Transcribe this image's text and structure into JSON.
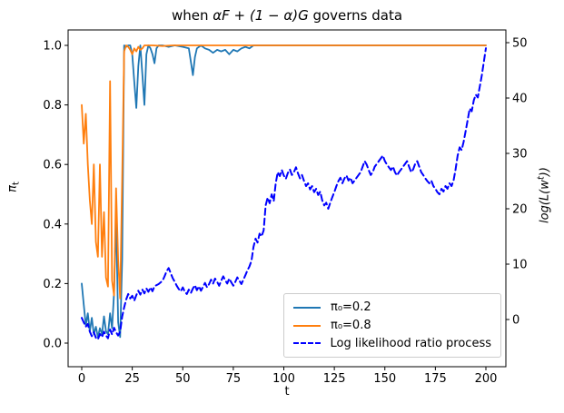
{
  "title": {
    "prefix": "when ",
    "math": "αF + (1 − α)G",
    "suffix": " governs data"
  },
  "axes": {
    "xlabel": "t",
    "ylabel_left": {
      "main": "π",
      "sub": "t"
    },
    "ylabel_right": {
      "pre": "log(L(w",
      "sup": "t",
      "post": "))"
    }
  },
  "legend": {
    "items": [
      {
        "label": "π₀=0.2",
        "color": "#1f77b4",
        "dash": false
      },
      {
        "label": "π₀=0.8",
        "color": "#ff7f0e",
        "dash": false
      },
      {
        "label": "Log likelihood ratio process",
        "color": "#0000ff",
        "dash": true
      }
    ]
  },
  "chart_data": {
    "type": "line",
    "title": "when αF + (1 − α)G governs data",
    "xlabel": "t",
    "ylabel_left": "π_t",
    "ylabel_right": "log(L(w^t))",
    "xlim": [
      -7,
      210
    ],
    "ylim_left": [
      -0.07,
      1.05
    ],
    "ylim_right": [
      -8.4,
      52.3
    ],
    "xticks": [
      0,
      25,
      50,
      75,
      100,
      125,
      150,
      175,
      200
    ],
    "yticks_left": [
      0.0,
      0.2,
      0.4,
      0.6,
      0.8,
      1.0
    ],
    "yticks_right": [
      0,
      10,
      20,
      30,
      40,
      50
    ],
    "grid": false,
    "legend_position": "lower right",
    "series": [
      {
        "name": "π₀=0.2",
        "axis": "left",
        "color": "#1f77b4",
        "style": "solid",
        "points": [
          [
            0,
            0.2
          ],
          [
            1,
            0.13
          ],
          [
            2,
            0.06
          ],
          [
            3,
            0.1
          ],
          [
            4,
            0.04
          ],
          [
            5,
            0.085
          ],
          [
            6,
            0.03
          ],
          [
            7,
            0.055
          ],
          [
            8,
            0.02
          ],
          [
            9,
            0.05
          ],
          [
            10,
            0.03
          ],
          [
            11,
            0.09
          ],
          [
            12,
            0.04
          ],
          [
            13,
            0.03
          ],
          [
            14,
            0.1
          ],
          [
            15,
            0.05
          ],
          [
            16,
            0.17
          ],
          [
            17,
            0.43
          ],
          [
            18,
            0.07
          ],
          [
            19,
            0.02
          ],
          [
            20,
            0.28
          ],
          [
            21,
            1.0
          ],
          [
            22,
            0.995
          ],
          [
            23,
            1.0
          ],
          [
            24,
            1.0
          ],
          [
            25,
            0.97
          ],
          [
            26,
            0.88
          ],
          [
            27,
            0.79
          ],
          [
            28,
            0.93
          ],
          [
            29,
            1.0
          ],
          [
            30,
            0.9
          ],
          [
            31,
            0.8
          ],
          [
            32,
            0.97
          ],
          [
            33,
            1.0
          ],
          [
            34,
            0.99
          ],
          [
            35,
            0.97
          ],
          [
            36,
            0.94
          ],
          [
            37,
            0.99
          ],
          [
            38,
            1.0
          ],
          [
            40,
            1.0
          ],
          [
            43,
            0.995
          ],
          [
            46,
            1.0
          ],
          [
            50,
            0.995
          ],
          [
            53,
            0.99
          ],
          [
            55,
            0.9
          ],
          [
            56,
            0.96
          ],
          [
            57,
            0.99
          ],
          [
            59,
            1.0
          ],
          [
            61,
            0.99
          ],
          [
            63,
            0.985
          ],
          [
            65,
            0.975
          ],
          [
            67,
            0.985
          ],
          [
            69,
            0.98
          ],
          [
            71,
            0.985
          ],
          [
            73,
            0.97
          ],
          [
            75,
            0.985
          ],
          [
            77,
            0.98
          ],
          [
            79,
            0.99
          ],
          [
            81,
            0.995
          ],
          [
            83,
            0.99
          ],
          [
            85,
            1.0
          ],
          [
            100,
            1.0
          ],
          [
            150,
            1.0
          ],
          [
            200,
            1.0
          ]
        ]
      },
      {
        "name": "π₀=0.8",
        "axis": "left",
        "color": "#ff7f0e",
        "style": "solid",
        "points": [
          [
            0,
            0.8
          ],
          [
            1,
            0.67
          ],
          [
            2,
            0.77
          ],
          [
            3,
            0.6
          ],
          [
            4,
            0.48
          ],
          [
            5,
            0.4
          ],
          [
            6,
            0.6
          ],
          [
            7,
            0.34
          ],
          [
            8,
            0.29
          ],
          [
            9,
            0.6
          ],
          [
            10,
            0.29
          ],
          [
            11,
            0.44
          ],
          [
            12,
            0.22
          ],
          [
            13,
            0.19
          ],
          [
            14,
            0.88
          ],
          [
            15,
            0.21
          ],
          [
            16,
            0.16
          ],
          [
            17,
            0.52
          ],
          [
            18,
            0.28
          ],
          [
            19,
            0.15
          ],
          [
            20,
            0.55
          ],
          [
            21,
            0.98
          ],
          [
            22,
            1.0
          ],
          [
            23,
            0.995
          ],
          [
            24,
            0.985
          ],
          [
            25,
            0.97
          ],
          [
            26,
            0.99
          ],
          [
            27,
            0.98
          ],
          [
            28,
            0.995
          ],
          [
            29,
            0.985
          ],
          [
            30,
            0.99
          ],
          [
            31,
            1.0
          ],
          [
            35,
            1.0
          ],
          [
            40,
            0.998
          ],
          [
            45,
            1.0
          ],
          [
            60,
            1.0
          ],
          [
            100,
            1.0
          ],
          [
            200,
            1.0
          ]
        ]
      },
      {
        "name": "Log likelihood ratio process",
        "axis": "right",
        "color": "#0000ff",
        "style": "dashed",
        "points": [
          [
            0,
            0.3
          ],
          [
            1,
            -0.5
          ],
          [
            2,
            -1.3
          ],
          [
            3,
            -0.8
          ],
          [
            4,
            -2.2
          ],
          [
            5,
            -3.0
          ],
          [
            6,
            -2.3
          ],
          [
            7,
            -3.3
          ],
          [
            8,
            -3.6
          ],
          [
            9,
            -2.6
          ],
          [
            10,
            -3.2
          ],
          [
            11,
            -2.2
          ],
          [
            12,
            -2.9
          ],
          [
            13,
            -3.4
          ],
          [
            14,
            -1.8
          ],
          [
            15,
            -2.7
          ],
          [
            16,
            -1.5
          ],
          [
            17,
            -2.3
          ],
          [
            18,
            -2.9
          ],
          [
            19,
            -2.2
          ],
          [
            20,
            0.5
          ],
          [
            21,
            2.2
          ],
          [
            22,
            3.6
          ],
          [
            23,
            4.6
          ],
          [
            24,
            3.8
          ],
          [
            25,
            4.3
          ],
          [
            26,
            3.4
          ],
          [
            27,
            4.4
          ],
          [
            28,
            5.2
          ],
          [
            29,
            4.5
          ],
          [
            30,
            5.4
          ],
          [
            31,
            4.7
          ],
          [
            32,
            5.6
          ],
          [
            33,
            5.0
          ],
          [
            34,
            5.8
          ],
          [
            35,
            5.1
          ],
          [
            36,
            6.0
          ],
          [
            38,
            6.4
          ],
          [
            40,
            7.0
          ],
          [
            41,
            7.8
          ],
          [
            42,
            8.7
          ],
          [
            43,
            9.3
          ],
          [
            44,
            8.4
          ],
          [
            45,
            7.5
          ],
          [
            46,
            6.8
          ],
          [
            47,
            6.1
          ],
          [
            48,
            5.5
          ],
          [
            49,
            5.1
          ],
          [
            50,
            5.8
          ],
          [
            51,
            5.0
          ],
          [
            52,
            4.6
          ],
          [
            53,
            5.4
          ],
          [
            54,
            4.8
          ],
          [
            55,
            5.6
          ],
          [
            56,
            6.2
          ],
          [
            57,
            5.3
          ],
          [
            58,
            6.0
          ],
          [
            59,
            5.2
          ],
          [
            60,
            5.9
          ],
          [
            61,
            6.6
          ],
          [
            62,
            5.8
          ],
          [
            63,
            6.4
          ],
          [
            64,
            7.2
          ],
          [
            65,
            6.5
          ],
          [
            66,
            7.4
          ],
          [
            67,
            6.8
          ],
          [
            68,
            6.1
          ],
          [
            69,
            7.0
          ],
          [
            70,
            7.8
          ],
          [
            71,
            7.1
          ],
          [
            72,
            6.5
          ],
          [
            73,
            7.4
          ],
          [
            74,
            6.7
          ],
          [
            75,
            6.1
          ],
          [
            76,
            6.8
          ],
          [
            77,
            7.6
          ],
          [
            78,
            7.0
          ],
          [
            79,
            6.4
          ],
          [
            80,
            7.2
          ],
          [
            81,
            8.0
          ],
          [
            82,
            8.9
          ],
          [
            83,
            9.6
          ],
          [
            84,
            10.6
          ],
          [
            85,
            13.1
          ],
          [
            86,
            14.6
          ],
          [
            87,
            13.9
          ],
          [
            88,
            15.5
          ],
          [
            89,
            15.0
          ],
          [
            90,
            16.1
          ],
          [
            91,
            20.6
          ],
          [
            92,
            22.0
          ],
          [
            93,
            21.0
          ],
          [
            94,
            22.6
          ],
          [
            95,
            21.4
          ],
          [
            96,
            24.6
          ],
          [
            97,
            26.6
          ],
          [
            98,
            25.9
          ],
          [
            99,
            27.0
          ],
          [
            100,
            26.0
          ],
          [
            101,
            25.4
          ],
          [
            102,
            26.5
          ],
          [
            103,
            27.1
          ],
          [
            104,
            26.1
          ],
          [
            105,
            26.6
          ],
          [
            106,
            27.5
          ],
          [
            107,
            26.4
          ],
          [
            108,
            25.5
          ],
          [
            109,
            26.1
          ],
          [
            110,
            25.0
          ],
          [
            111,
            24.1
          ],
          [
            112,
            24.6
          ],
          [
            113,
            23.5
          ],
          [
            114,
            24.1
          ],
          [
            115,
            23.0
          ],
          [
            116,
            23.6
          ],
          [
            117,
            22.5
          ],
          [
            118,
            23.1
          ],
          [
            119,
            21.5
          ],
          [
            120,
            20.6
          ],
          [
            121,
            21.1
          ],
          [
            122,
            20.0
          ],
          [
            123,
            21.1
          ],
          [
            124,
            22.1
          ],
          [
            125,
            23.0
          ],
          [
            126,
            24.1
          ],
          [
            127,
            25.0
          ],
          [
            128,
            25.6
          ],
          [
            129,
            24.6
          ],
          [
            130,
            25.5
          ],
          [
            131,
            26.0
          ],
          [
            132,
            25.1
          ],
          [
            133,
            25.6
          ],
          [
            134,
            24.6
          ],
          [
            135,
            25.1
          ],
          [
            136,
            25.6
          ],
          [
            137,
            26.1
          ],
          [
            138,
            26.6
          ],
          [
            139,
            27.6
          ],
          [
            140,
            28.6
          ],
          [
            141,
            28.0
          ],
          [
            142,
            27.0
          ],
          [
            143,
            26.1
          ],
          [
            144,
            26.6
          ],
          [
            145,
            27.6
          ],
          [
            146,
            28.1
          ],
          [
            147,
            28.6
          ],
          [
            148,
            29.1
          ],
          [
            149,
            29.6
          ],
          [
            150,
            28.6
          ],
          [
            151,
            28.0
          ],
          [
            152,
            27.5
          ],
          [
            153,
            27.0
          ],
          [
            154,
            27.6
          ],
          [
            155,
            26.6
          ],
          [
            156,
            26.0
          ],
          [
            157,
            26.6
          ],
          [
            158,
            27.1
          ],
          [
            159,
            27.6
          ],
          [
            160,
            28.1
          ],
          [
            161,
            28.6
          ],
          [
            162,
            27.6
          ],
          [
            163,
            26.6
          ],
          [
            164,
            27.1
          ],
          [
            165,
            28.1
          ],
          [
            166,
            28.6
          ],
          [
            167,
            27.6
          ],
          [
            168,
            26.6
          ],
          [
            169,
            26.1
          ],
          [
            170,
            25.5
          ],
          [
            171,
            25.0
          ],
          [
            172,
            24.6
          ],
          [
            173,
            25.1
          ],
          [
            174,
            24.1
          ],
          [
            175,
            23.6
          ],
          [
            176,
            23.0
          ],
          [
            177,
            22.6
          ],
          [
            178,
            23.6
          ],
          [
            179,
            23.1
          ],
          [
            180,
            24.1
          ],
          [
            181,
            23.6
          ],
          [
            182,
            24.6
          ],
          [
            183,
            24.1
          ],
          [
            184,
            25.1
          ],
          [
            185,
            27.1
          ],
          [
            186,
            29.6
          ],
          [
            187,
            31.1
          ],
          [
            188,
            30.6
          ],
          [
            189,
            32.1
          ],
          [
            190,
            34.1
          ],
          [
            191,
            36.1
          ],
          [
            192,
            38.1
          ],
          [
            193,
            37.6
          ],
          [
            194,
            39.6
          ],
          [
            195,
            40.6
          ],
          [
            196,
            40.1
          ],
          [
            197,
            42.1
          ],
          [
            198,
            44.1
          ],
          [
            199,
            46.6
          ],
          [
            200,
            49.0
          ]
        ]
      }
    ]
  }
}
